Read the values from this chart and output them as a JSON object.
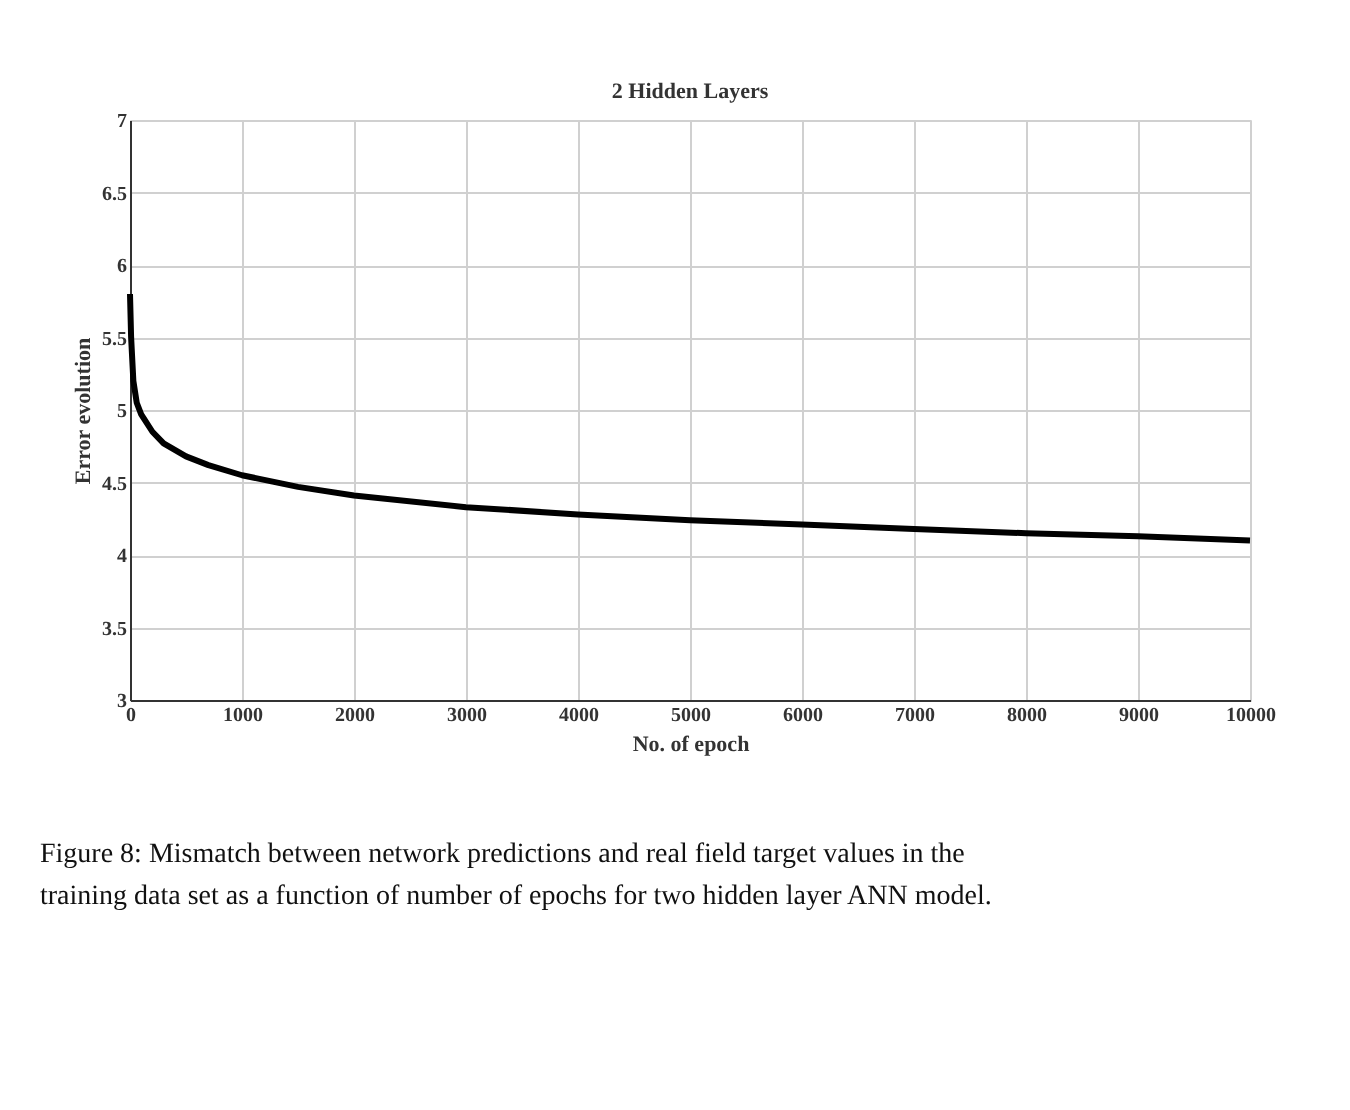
{
  "chart_data": {
    "type": "line",
    "title": "2 Hidden Layers",
    "xlabel": "No. of epoch",
    "ylabel": "Error evolution",
    "x": [
      0,
      10,
      30,
      60,
      100,
      200,
      300,
      500,
      700,
      1000,
      1500,
      2000,
      3000,
      4000,
      5000,
      6000,
      7000,
      8000,
      9000,
      10000
    ],
    "series": [
      {
        "color": "#000000",
        "values": [
          5.8,
          5.5,
          5.2,
          5.05,
          4.97,
          4.85,
          4.77,
          4.68,
          4.62,
          4.55,
          4.47,
          4.41,
          4.33,
          4.28,
          4.24,
          4.21,
          4.18,
          4.15,
          4.13,
          4.1
        ]
      }
    ],
    "xlim": [
      0,
      10000
    ],
    "xticks": [
      0,
      1000,
      2000,
      3000,
      4000,
      5000,
      6000,
      7000,
      8000,
      9000,
      10000
    ],
    "ylim": [
      3,
      7
    ],
    "yticks": [
      3,
      3.5,
      4,
      4.5,
      5,
      5.5,
      6,
      6.5,
      7
    ],
    "grid": true,
    "marker": "none",
    "line_style": "solid",
    "annotations": [
      "Figure 8: Mismatch between network predictions and real field target values in the training data set as a function of number of epochs for two hidden layer ANN model."
    ]
  }
}
